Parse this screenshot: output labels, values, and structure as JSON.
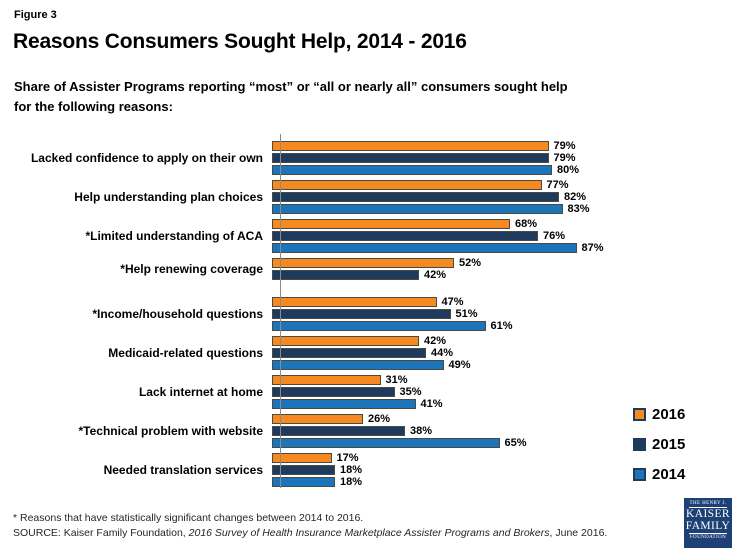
{
  "figure_label": "Figure 3",
  "title": "Reasons Consumers Sought Help, 2014 - 2016",
  "subtitle": {
    "line1": "Share of Assister Programs reporting “most” or “all or nearly all” consumers sought help",
    "line2": "for the following reasons:"
  },
  "chart_data": {
    "type": "bar",
    "orientation": "horizontal",
    "title": "Reasons Consumers Sought Help, 2014 - 2016",
    "xlabel": "",
    "ylabel": "",
    "xlim": [
      0,
      100
    ],
    "grid": false,
    "legend_position": "right",
    "value_suffix": "%",
    "categories": [
      "Lacked confidence to apply on their own",
      "Help understanding plan choices",
      "*Limited understanding of ACA",
      "*Help renewing coverage",
      "*Income/household questions",
      "Medicaid-related questions",
      "Lack internet at home",
      "*Technical problem with website",
      "Needed translation services"
    ],
    "series": [
      {
        "name": "2016",
        "color": "#F6891F",
        "values": [
          79,
          77,
          68,
          52,
          47,
          42,
          31,
          26,
          17
        ]
      },
      {
        "name": "2015",
        "color": "#1E3A5C",
        "values": [
          79,
          82,
          76,
          42,
          51,
          44,
          35,
          38,
          18
        ]
      },
      {
        "name": "2014",
        "color": "#1C75BB",
        "values": [
          80,
          83,
          87,
          null,
          61,
          49,
          41,
          65,
          18
        ]
      }
    ]
  },
  "legend": {
    "items": [
      {
        "label": "2016",
        "color": "#F6891F"
      },
      {
        "label": "2015",
        "color": "#1E3A5C"
      },
      {
        "label": "2014",
        "color": "#1C75BB"
      }
    ]
  },
  "footnote": "* Reasons that have statistically significant changes between 2014 to 2016.",
  "source": {
    "prefix": "SOURCE: Kaiser Family Foundation, ",
    "italic": "2016 Survey of Health Insurance Marketplace Assister Programs and Brokers",
    "suffix": ", June 2016."
  },
  "logo": {
    "line1": "THE HENRY J.",
    "line2": "KAISER",
    "line3": "FAMILY",
    "line4": "FOUNDATION"
  }
}
